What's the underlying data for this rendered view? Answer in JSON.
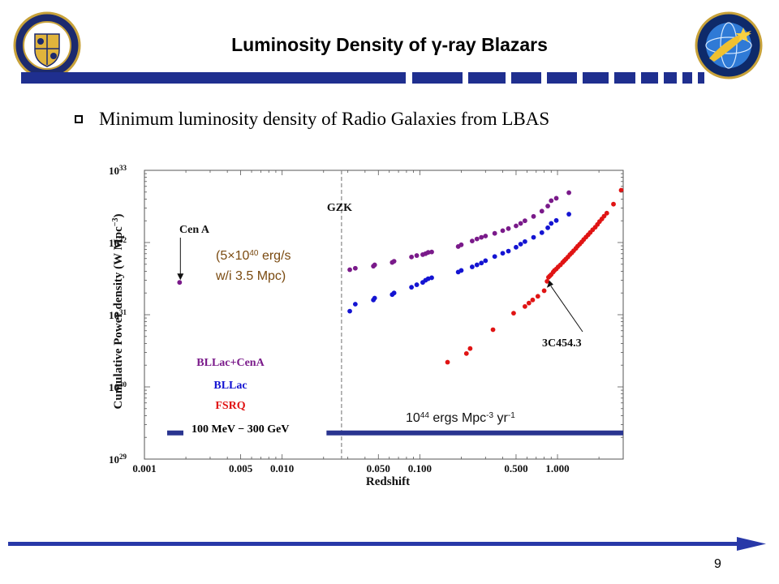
{
  "slide": {
    "title": "Luminosity Density of γ-ray Blazars",
    "bullet": "Minimum luminosity density of Radio Galaxies from LBAS",
    "page_number": "9",
    "colors": {
      "title_bar": "#1f2f8f",
      "footer_arrow": "#2838a8"
    },
    "logos": [
      "naval-research-laboratory-logo",
      "space-science-division-logo"
    ]
  },
  "chart_data": {
    "type": "scatter",
    "xlabel": "Redshift",
    "ylabel": "Cumulative Power density (W Mpc",
    "ylabel_sup": "−3",
    "ylabel_close": ")",
    "x_scale": "log",
    "y_scale": "log",
    "xlim": [
      0.001,
      3.0
    ],
    "ylim": [
      1e+29,
      1e+33
    ],
    "x_ticks": [
      {
        "value": 0.001,
        "label": "0.001"
      },
      {
        "value": 0.005,
        "label": "0.005"
      },
      {
        "value": 0.01,
        "label": "0.010"
      },
      {
        "value": 0.05,
        "label": "0.050"
      },
      {
        "value": 0.1,
        "label": "0.100"
      },
      {
        "value": 0.5,
        "label": "0.500"
      },
      {
        "value": 1.0,
        "label": "1.000"
      }
    ],
    "y_ticks": [
      {
        "value": 1e+29,
        "base": "10",
        "exp": "29"
      },
      {
        "value": 1e+30,
        "base": "10",
        "exp": "30"
      },
      {
        "value": 1e+31,
        "base": "10",
        "exp": "31"
      },
      {
        "value": 1e+32,
        "base": "10",
        "exp": "32"
      },
      {
        "value": 1e+33,
        "base": "10",
        "exp": "33"
      }
    ],
    "vline": {
      "x": 0.027,
      "label": "GZK"
    },
    "hline": {
      "y": 2.3e+29
    },
    "legend": [
      {
        "label": "BLLac+CenA",
        "color": "#7a1a8a"
      },
      {
        "label": "BLLac",
        "color": "#1414d2"
      },
      {
        "label": "FSRQ",
        "color": "#e01414"
      },
      {
        "label": "100 MeV − 300 GeV",
        "color": "#000000",
        "line_color": "#2a3590"
      }
    ],
    "annotations": {
      "cen_a": {
        "label": "Cen A",
        "x": 0.0018,
        "y": 2.8e+31
      },
      "cen_a_note": [
        "(5×10",
        "40",
        " erg/s",
        "w/i 3.5 Mpc)"
      ],
      "src_3c454": {
        "label": "3C454.3",
        "x": 0.86,
        "y": 3.4e+31
      },
      "rate": [
        "10",
        "44",
        " ergs Mpc",
        "-3",
        " yr",
        "-1"
      ]
    },
    "series": [
      {
        "name": "BLLac+CenA",
        "color": "#7a1a8a",
        "x": [
          0.0018,
          0.031,
          0.034,
          0.046,
          0.047,
          0.063,
          0.065,
          0.087,
          0.095,
          0.105,
          0.11,
          0.115,
          0.122,
          0.19,
          0.2,
          0.24,
          0.26,
          0.28,
          0.3,
          0.35,
          0.4,
          0.44,
          0.5,
          0.54,
          0.58,
          0.67,
          0.77,
          0.85,
          0.9,
          0.98,
          1.21
        ],
        "y": [
          2.8e+31,
          4.2e+31,
          4.4e+31,
          4.7e+31,
          4.9e+31,
          5.3e+31,
          5.5e+31,
          6.3e+31,
          6.6e+31,
          6.8e+31,
          7e+31,
          7.3e+31,
          7.4e+31,
          8.8e+31,
          9.3e+31,
          1.05e+32,
          1.12e+32,
          1.18e+32,
          1.23e+32,
          1.34e+32,
          1.46e+32,
          1.56e+32,
          1.7e+32,
          1.84e+32,
          2e+32,
          2.3e+32,
          2.72e+32,
          3.2e+32,
          3.8e+32,
          4.1e+32,
          4.9e+32
        ]
      },
      {
        "name": "BLLac",
        "color": "#1414d2",
        "x": [
          0.031,
          0.034,
          0.046,
          0.047,
          0.063,
          0.065,
          0.087,
          0.095,
          0.105,
          0.11,
          0.115,
          0.122,
          0.19,
          0.2,
          0.24,
          0.26,
          0.28,
          0.3,
          0.35,
          0.4,
          0.44,
          0.5,
          0.54,
          0.58,
          0.67,
          0.77,
          0.85,
          0.9,
          0.98,
          1.21
        ],
        "y": [
          1.12e+31,
          1.4e+31,
          1.6e+31,
          1.7e+31,
          1.9e+31,
          2e+31,
          2.4e+31,
          2.6e+31,
          2.8e+31,
          3e+31,
          3.15e+31,
          3.25e+31,
          3.9e+31,
          4.1e+31,
          4.6e+31,
          4.9e+31,
          5.2e+31,
          5.6e+31,
          6.4e+31,
          7.1e+31,
          7.6e+31,
          8.6e+31,
          9.5e+31,
          1.03e+32,
          1.18e+32,
          1.37e+32,
          1.6e+32,
          1.84e+32,
          2.02e+32,
          2.47e+32
        ]
      },
      {
        "name": "FSRQ",
        "color": "#e01414",
        "x": [
          0.159,
          0.218,
          0.232,
          0.34,
          0.48,
          0.58,
          0.62,
          0.66,
          0.72,
          0.8,
          0.84,
          0.86,
          0.88,
          0.9,
          0.93,
          0.95,
          0.98,
          1.01,
          1.05,
          1.09,
          1.12,
          1.15,
          1.19,
          1.23,
          1.27,
          1.31,
          1.36,
          1.4,
          1.45,
          1.5,
          1.55,
          1.61,
          1.67,
          1.73,
          1.8,
          1.88,
          1.95,
          2.02,
          2.1,
          2.18,
          2.28,
          2.55,
          2.9
        ],
        "y": [
          2.2e+30,
          2.9e+30,
          3.4e+30,
          6.2e+30,
          1.05e+31,
          1.3e+31,
          1.45e+31,
          1.6e+31,
          1.8e+31,
          2.15e+31,
          2.9e+31,
          3.3e+31,
          3.45e+31,
          3.6e+31,
          3.9e+31,
          4.1e+31,
          4.3e+31,
          4.6e+31,
          4.9e+31,
          5.3e+31,
          5.6e+31,
          5.9e+31,
          6.3e+31,
          6.8e+31,
          7.2e+31,
          7.7e+31,
          8.3e+31,
          8.9e+31,
          9.5e+31,
          1.02e+32,
          1.1e+32,
          1.19e+32,
          1.28e+32,
          1.38e+32,
          1.5e+32,
          1.63e+32,
          1.78e+32,
          1.95e+32,
          2.12e+32,
          2.32e+32,
          2.55e+32,
          3.4e+32,
          5.3e+32
        ]
      }
    ]
  }
}
